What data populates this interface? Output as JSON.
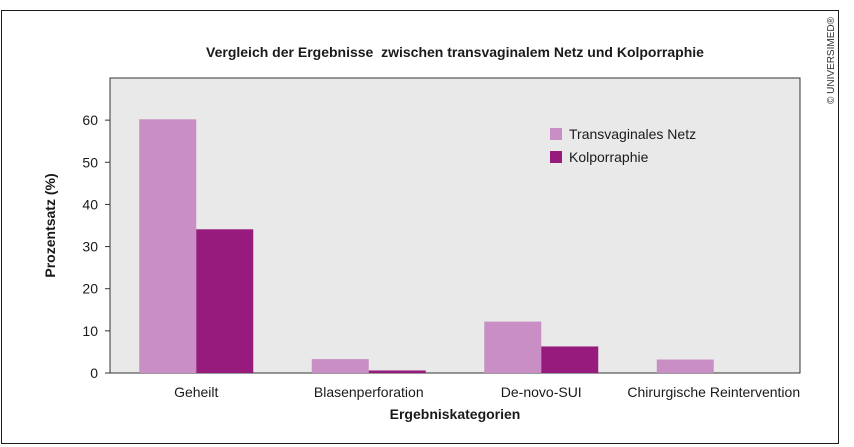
{
  "copyright": "© UNIVERSIMED®",
  "chart_data": {
    "type": "bar",
    "title": "Vergleich der Ergebnisse  zwischen transvaginalem Netz und Kolporraphie",
    "xlabel": "Ergebniskategorien",
    "ylabel": "Prozentsatz (%)",
    "categories": [
      "Geheilt",
      "Blasenperforation",
      "De-novo-SUI",
      "Chirurgische Reintervention"
    ],
    "series": [
      {
        "name": "Transvaginales Netz",
        "values": [
          60.2,
          3.3,
          12.2,
          3.2
        ],
        "color": "#c98fc5"
      },
      {
        "name": "Kolporraphie",
        "values": [
          34.1,
          0.6,
          6.3,
          0
        ],
        "color": "#961b7d"
      }
    ],
    "ylim": [
      0,
      70
    ],
    "yticks": [
      0,
      10,
      20,
      30,
      40,
      50,
      60
    ],
    "grid": false,
    "legend_position": "top-right",
    "plot_background": "#e9e9e9"
  }
}
